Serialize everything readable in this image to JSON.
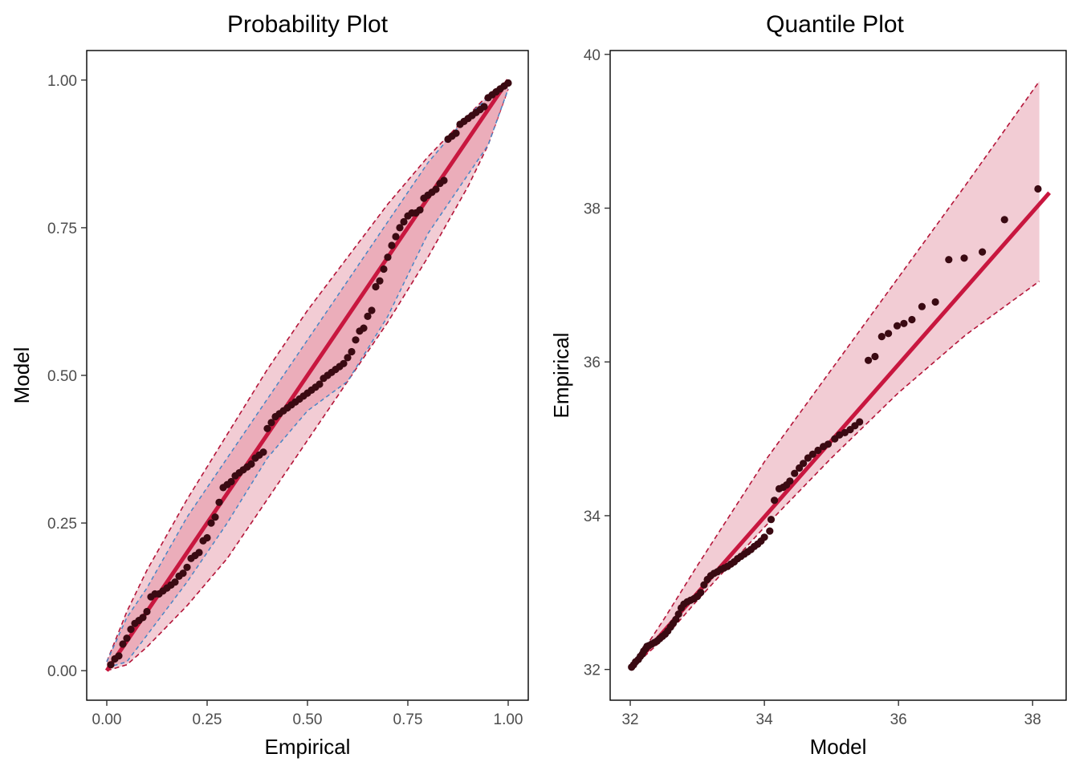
{
  "colors": {
    "outer_band_fill": "#f2ccd4",
    "inner_band_fill": "#e8a3b2",
    "band_edge": "#b4163a",
    "inner_band_edge": "#4a86c5",
    "reference_line": "#c8173f",
    "points": "#3a0a12"
  },
  "chart_data": [
    {
      "type": "scatter",
      "title": "Probability Plot",
      "xlabel": "Empirical",
      "ylabel": "Model",
      "xlim": [
        -0.05,
        1.05
      ],
      "ylim": [
        -0.05,
        1.05
      ],
      "xticks": [
        0,
        0.25,
        0.5,
        0.75,
        1
      ],
      "yticks": [
        0,
        0.25,
        0.5,
        0.75,
        1
      ],
      "xtick_labels": [
        "0.00",
        "0.25",
        "0.50",
        "0.75",
        "1.00"
      ],
      "ytick_labels": [
        "0.00",
        "0.25",
        "0.50",
        "0.75",
        "1.00"
      ],
      "grid": false,
      "reference_line": [
        [
          0,
          0
        ],
        [
          1,
          1
        ]
      ],
      "outer_band": {
        "upper": [
          [
            0,
            0.015
          ],
          [
            0.05,
            0.1
          ],
          [
            0.1,
            0.17
          ],
          [
            0.2,
            0.29
          ],
          [
            0.3,
            0.4
          ],
          [
            0.4,
            0.51
          ],
          [
            0.5,
            0.61
          ],
          [
            0.6,
            0.7
          ],
          [
            0.7,
            0.79
          ],
          [
            0.8,
            0.87
          ],
          [
            0.9,
            0.94
          ],
          [
            0.95,
            0.975
          ],
          [
            1,
            1
          ]
        ],
        "lower": [
          [
            0,
            0
          ],
          [
            0.05,
            0.01
          ],
          [
            0.1,
            0.04
          ],
          [
            0.2,
            0.11
          ],
          [
            0.3,
            0.19
          ],
          [
            0.4,
            0.29
          ],
          [
            0.5,
            0.39
          ],
          [
            0.6,
            0.49
          ],
          [
            0.7,
            0.59
          ],
          [
            0.8,
            0.7
          ],
          [
            0.9,
            0.82
          ],
          [
            0.95,
            0.89
          ],
          [
            1,
            0.985
          ]
        ]
      },
      "inner_band": {
        "upper": [
          [
            0,
            0.015
          ],
          [
            0.05,
            0.09
          ],
          [
            0.1,
            0.14
          ],
          [
            0.2,
            0.26
          ],
          [
            0.3,
            0.36
          ],
          [
            0.4,
            0.46
          ],
          [
            0.5,
            0.56
          ],
          [
            0.6,
            0.66
          ],
          [
            0.7,
            0.76
          ],
          [
            0.8,
            0.86
          ],
          [
            0.9,
            0.94
          ],
          [
            0.95,
            0.97
          ],
          [
            1,
            1
          ]
        ],
        "lower": [
          [
            0,
            0.005
          ],
          [
            0.05,
            0.015
          ],
          [
            0.1,
            0.06
          ],
          [
            0.2,
            0.15
          ],
          [
            0.3,
            0.25
          ],
          [
            0.4,
            0.36
          ],
          [
            0.5,
            0.44
          ],
          [
            0.6,
            0.49
          ],
          [
            0.7,
            0.6
          ],
          [
            0.8,
            0.74
          ],
          [
            0.9,
            0.84
          ],
          [
            0.95,
            0.89
          ],
          [
            1,
            0.985
          ]
        ]
      },
      "points": [
        [
          0.01,
          0.01
        ],
        [
          0.02,
          0.02
        ],
        [
          0.03,
          0.025
        ],
        [
          0.04,
          0.045
        ],
        [
          0.05,
          0.055
        ],
        [
          0.06,
          0.07
        ],
        [
          0.07,
          0.08
        ],
        [
          0.08,
          0.085
        ],
        [
          0.09,
          0.09
        ],
        [
          0.1,
          0.1
        ],
        [
          0.11,
          0.125
        ],
        [
          0.12,
          0.13
        ],
        [
          0.13,
          0.13
        ],
        [
          0.14,
          0.135
        ],
        [
          0.15,
          0.14
        ],
        [
          0.16,
          0.145
        ],
        [
          0.17,
          0.15
        ],
        [
          0.18,
          0.16
        ],
        [
          0.19,
          0.165
        ],
        [
          0.2,
          0.175
        ],
        [
          0.21,
          0.19
        ],
        [
          0.22,
          0.195
        ],
        [
          0.23,
          0.2
        ],
        [
          0.24,
          0.22
        ],
        [
          0.25,
          0.225
        ],
        [
          0.26,
          0.25
        ],
        [
          0.27,
          0.26
        ],
        [
          0.28,
          0.285
        ],
        [
          0.29,
          0.31
        ],
        [
          0.3,
          0.315
        ],
        [
          0.31,
          0.32
        ],
        [
          0.32,
          0.33
        ],
        [
          0.33,
          0.335
        ],
        [
          0.34,
          0.34
        ],
        [
          0.35,
          0.345
        ],
        [
          0.36,
          0.35
        ],
        [
          0.37,
          0.36
        ],
        [
          0.38,
          0.365
        ],
        [
          0.39,
          0.37
        ],
        [
          0.4,
          0.41
        ],
        [
          0.41,
          0.42
        ],
        [
          0.42,
          0.43
        ],
        [
          0.43,
          0.435
        ],
        [
          0.44,
          0.44
        ],
        [
          0.45,
          0.445
        ],
        [
          0.46,
          0.45
        ],
        [
          0.47,
          0.455
        ],
        [
          0.48,
          0.46
        ],
        [
          0.49,
          0.465
        ],
        [
          0.5,
          0.47
        ],
        [
          0.51,
          0.475
        ],
        [
          0.52,
          0.48
        ],
        [
          0.53,
          0.485
        ],
        [
          0.54,
          0.495
        ],
        [
          0.55,
          0.5
        ],
        [
          0.56,
          0.505
        ],
        [
          0.57,
          0.51
        ],
        [
          0.58,
          0.515
        ],
        [
          0.59,
          0.52
        ],
        [
          0.6,
          0.53
        ],
        [
          0.61,
          0.54
        ],
        [
          0.62,
          0.56
        ],
        [
          0.63,
          0.575
        ],
        [
          0.64,
          0.58
        ],
        [
          0.65,
          0.6
        ],
        [
          0.66,
          0.61
        ],
        [
          0.67,
          0.65
        ],
        [
          0.68,
          0.66
        ],
        [
          0.69,
          0.68
        ],
        [
          0.7,
          0.7
        ],
        [
          0.71,
          0.72
        ],
        [
          0.72,
          0.735
        ],
        [
          0.73,
          0.75
        ],
        [
          0.74,
          0.76
        ],
        [
          0.75,
          0.77
        ],
        [
          0.76,
          0.775
        ],
        [
          0.77,
          0.775
        ],
        [
          0.78,
          0.78
        ],
        [
          0.79,
          0.8
        ],
        [
          0.8,
          0.805
        ],
        [
          0.81,
          0.81
        ],
        [
          0.82,
          0.815
        ],
        [
          0.83,
          0.825
        ],
        [
          0.84,
          0.83
        ],
        [
          0.85,
          0.9
        ],
        [
          0.86,
          0.905
        ],
        [
          0.87,
          0.91
        ],
        [
          0.88,
          0.925
        ],
        [
          0.89,
          0.93
        ],
        [
          0.9,
          0.935
        ],
        [
          0.91,
          0.94
        ],
        [
          0.92,
          0.945
        ],
        [
          0.93,
          0.95
        ],
        [
          0.94,
          0.955
        ],
        [
          0.95,
          0.97
        ],
        [
          0.96,
          0.975
        ],
        [
          0.97,
          0.98
        ],
        [
          0.98,
          0.985
        ],
        [
          0.99,
          0.99
        ],
        [
          1.0,
          0.995
        ]
      ]
    },
    {
      "type": "scatter",
      "title": "Quantile Plot",
      "xlabel": "Model",
      "ylabel": "Empirical",
      "xlim": [
        31.7,
        38.5
      ],
      "ylim": [
        31.6,
        40.05
      ],
      "xticks": [
        32,
        34,
        36,
        38
      ],
      "yticks": [
        32,
        34,
        36,
        38,
        40
      ],
      "xtick_labels": [
        "32",
        "34",
        "36",
        "38"
      ],
      "ytick_labels": [
        "32",
        "34",
        "36",
        "38",
        "40"
      ],
      "grid": false,
      "reference_line": [
        [
          32,
          32
        ],
        [
          38.25,
          38.2
        ]
      ],
      "outer_band": {
        "upper": [
          [
            32.03,
            32.03
          ],
          [
            32.5,
            32.65
          ],
          [
            33,
            33.35
          ],
          [
            34,
            34.7
          ],
          [
            35,
            35.9
          ],
          [
            36,
            37.1
          ],
          [
            37,
            38.3
          ],
          [
            38.1,
            39.65
          ]
        ],
        "lower": [
          [
            32.03,
            32.03
          ],
          [
            32.5,
            32.4
          ],
          [
            33,
            32.9
          ],
          [
            34,
            33.85
          ],
          [
            35,
            34.75
          ],
          [
            36,
            35.6
          ],
          [
            37,
            36.35
          ],
          [
            38.1,
            37.05
          ]
        ]
      },
      "points": [
        [
          32.02,
          32.03
        ],
        [
          32.05,
          32.06
        ],
        [
          32.08,
          32.1
        ],
        [
          32.12,
          32.13
        ],
        [
          32.15,
          32.17
        ],
        [
          32.18,
          32.2
        ],
        [
          32.2,
          32.24
        ],
        [
          32.23,
          32.27
        ],
        [
          32.25,
          32.3
        ],
        [
          32.28,
          32.31
        ],
        [
          32.32,
          32.33
        ],
        [
          32.36,
          32.35
        ],
        [
          32.4,
          32.37
        ],
        [
          32.44,
          32.4
        ],
        [
          32.48,
          32.43
        ],
        [
          32.52,
          32.46
        ],
        [
          32.56,
          32.5
        ],
        [
          32.6,
          32.55
        ],
        [
          32.64,
          32.6
        ],
        [
          32.68,
          32.65
        ],
        [
          32.72,
          32.72
        ],
        [
          32.76,
          32.8
        ],
        [
          32.8,
          32.85
        ],
        [
          32.85,
          32.88
        ],
        [
          32.9,
          32.9
        ],
        [
          32.95,
          32.92
        ],
        [
          33.0,
          32.95
        ],
        [
          33.05,
          33.0
        ],
        [
          33.1,
          33.1
        ],
        [
          33.15,
          33.17
        ],
        [
          33.2,
          33.22
        ],
        [
          33.25,
          33.25
        ],
        [
          33.3,
          33.27
        ],
        [
          33.35,
          33.3
        ],
        [
          33.4,
          33.32
        ],
        [
          33.45,
          33.34
        ],
        [
          33.5,
          33.37
        ],
        [
          33.55,
          33.4
        ],
        [
          33.6,
          33.44
        ],
        [
          33.65,
          33.47
        ],
        [
          33.7,
          33.5
        ],
        [
          33.75,
          33.53
        ],
        [
          33.8,
          33.56
        ],
        [
          33.85,
          33.6
        ],
        [
          33.9,
          33.63
        ],
        [
          33.95,
          33.67
        ],
        [
          34.0,
          33.72
        ],
        [
          34.08,
          33.8
        ],
        [
          34.1,
          33.95
        ],
        [
          34.15,
          34.2
        ],
        [
          34.22,
          34.35
        ],
        [
          34.28,
          34.37
        ],
        [
          34.33,
          34.4
        ],
        [
          34.38,
          34.45
        ],
        [
          34.45,
          34.55
        ],
        [
          34.52,
          34.62
        ],
        [
          34.58,
          34.68
        ],
        [
          34.65,
          34.75
        ],
        [
          34.72,
          34.8
        ],
        [
          34.8,
          34.85
        ],
        [
          34.88,
          34.9
        ],
        [
          34.95,
          34.93
        ],
        [
          35.05,
          35.0
        ],
        [
          35.12,
          35.05
        ],
        [
          35.2,
          35.08
        ],
        [
          35.28,
          35.12
        ],
        [
          35.35,
          35.17
        ],
        [
          35.42,
          35.22
        ],
        [
          35.55,
          36.02
        ],
        [
          35.65,
          36.07
        ],
        [
          35.75,
          36.33
        ],
        [
          35.85,
          36.37
        ],
        [
          35.98,
          36.47
        ],
        [
          36.08,
          36.5
        ],
        [
          36.2,
          36.55
        ],
        [
          36.35,
          36.72
        ],
        [
          36.55,
          36.78
        ],
        [
          36.75,
          37.33
        ],
        [
          36.98,
          37.35
        ],
        [
          37.25,
          37.43
        ],
        [
          37.58,
          37.85
        ],
        [
          38.08,
          38.25
        ]
      ]
    }
  ]
}
